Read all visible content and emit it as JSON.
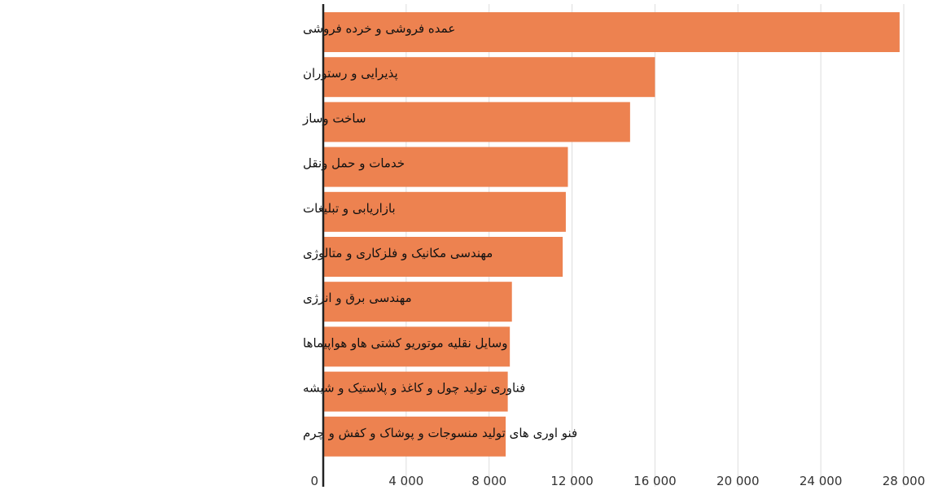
{
  "chart_data": {
    "type": "bar",
    "orientation": "horizontal",
    "categories": [
      "عمده فروشی و خرده فروشی",
      "پذیرایی و رستوران",
      "ساخت وساز",
      "خدمات و حمل ونقل",
      "بازاریابی و تبلیغات",
      "مهندسی مکانیک و فلزکاری و متالوژی",
      "مهندسی برق و انرژی",
      "وسایل نقلیه موتوریو کشتی هاو هواپیماها",
      "فناوری تولید چول و کاغذ و پلاستیک و شیشه",
      "فنو اوری های تولید منسوجات و پوشاک و کفش و چرم"
    ],
    "values": [
      27800,
      16000,
      14800,
      11800,
      11700,
      11550,
      9100,
      9000,
      8900,
      8800
    ],
    "xlim": [
      0,
      28000
    ],
    "x_ticks": [
      0,
      4000,
      8000,
      12000,
      16000,
      20000,
      24000,
      28000
    ],
    "x_tick_labels": [
      "0",
      "4 000",
      "8 000",
      "12 000",
      "16 000",
      "20 000",
      "24 000",
      "28 000"
    ],
    "grid": "vertical",
    "bar_color": "#ed8250",
    "grid_color": "#dddddd",
    "axis_color": "#222222"
  }
}
